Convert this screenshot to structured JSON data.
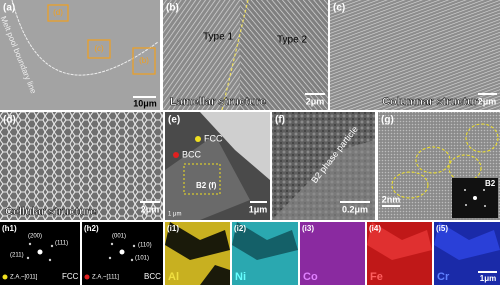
{
  "panels": [
    {
      "label": "(a)",
      "annotations": [
        "Melt pool boundary line",
        "(d)",
        "(c)",
        "(b)"
      ],
      "scale_bar": "10μm"
    },
    {
      "label": "(b)",
      "annotations": [
        "Type 1",
        "Type 2"
      ],
      "caption": "Lamellar structure",
      "scale_bar": "2μm"
    },
    {
      "label": "(c)",
      "caption": "Columnar structure",
      "scale_bar": "2μm"
    },
    {
      "label": "(d)",
      "caption": "Cellular structure",
      "scale_bar": "2μm"
    },
    {
      "label": "(e)",
      "annotations": [
        "FCC",
        "BCC",
        "B2 (f)",
        "1 μm"
      ],
      "scale_bar": "1μm"
    },
    {
      "label": "(f)",
      "annotations": [
        "B2 phase particle"
      ],
      "scale_bar": "0.2μm"
    },
    {
      "label": "(g)",
      "annotations": [
        "B2"
      ],
      "scale_bar": "2nm"
    },
    {
      "label": "(h1)",
      "annotations": [
        "(200)",
        "(111)",
        "(211)",
        "Z.A.~[011]",
        "FCC"
      ]
    },
    {
      "label": "(h2)",
      "annotations": [
        "(001)",
        "(110)",
        "(101)",
        "Z.A.~[111]",
        "BCC"
      ]
    },
    {
      "label": "(i1)",
      "element": "Al"
    },
    {
      "label": "(i2)",
      "element": "Ni"
    },
    {
      "label": "(i3)",
      "element": "Co"
    },
    {
      "label": "(i4)",
      "element": "Fe"
    },
    {
      "label": "(i5)",
      "element": "Cr",
      "scale_bar": "1μm"
    }
  ]
}
